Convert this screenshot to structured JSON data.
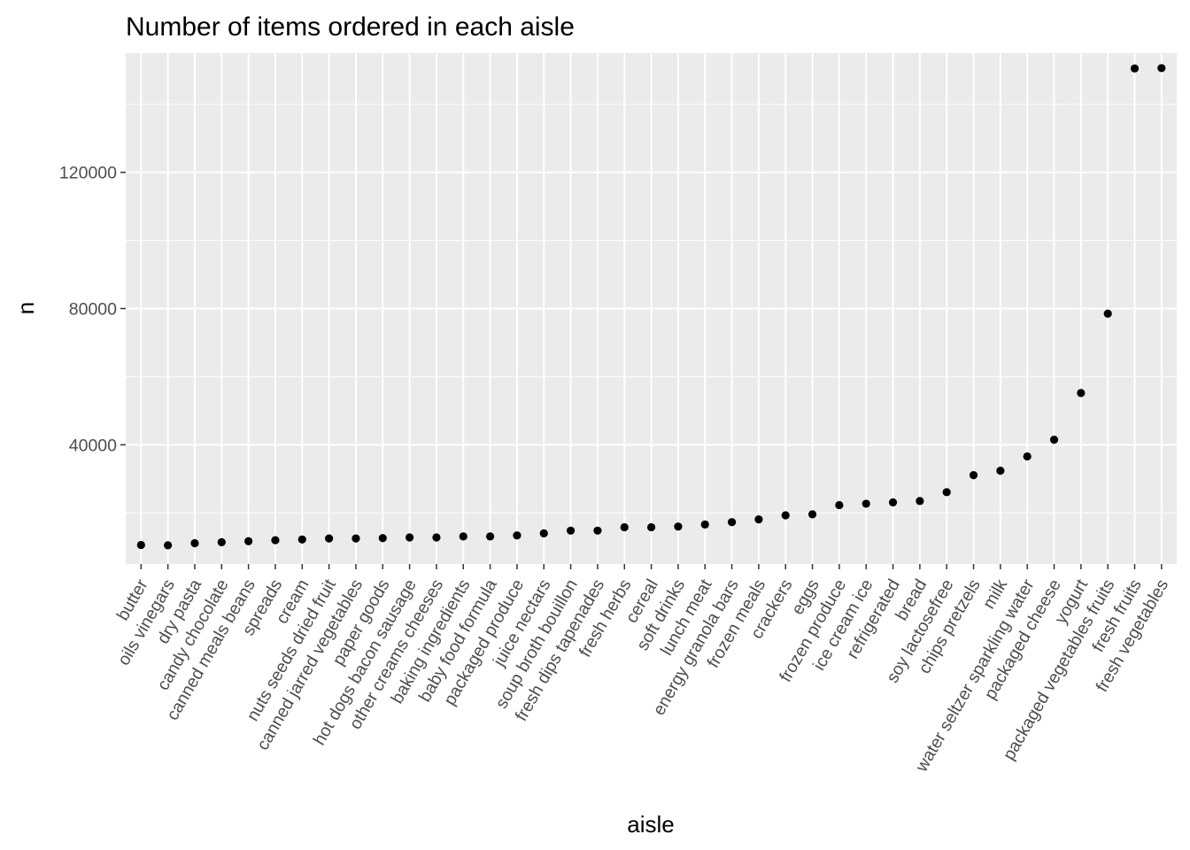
{
  "chart_data": {
    "type": "scatter",
    "title": "Number of items ordered in each aisle",
    "xlabel": "aisle",
    "ylabel": "n",
    "ylim": [
      5000,
      155000
    ],
    "yticks": [
      40000,
      80000,
      120000
    ],
    "grid": true,
    "point_color": "#000000",
    "panel_color": "#ebebeb",
    "grid_color": "#ffffff",
    "categories": [
      "butter",
      "oils vinegars",
      "dry pasta",
      "candy chocolate",
      "canned meals beans",
      "spreads",
      "cream",
      "nuts seeds dried fruit",
      "canned jarred vegetables",
      "paper goods",
      "hot dogs bacon sausage",
      "other creams cheeses",
      "baking ingredients",
      "baby food formula",
      "packaged produce",
      "juice nectars",
      "soup broth bouillon",
      "fresh dips tapenades",
      "fresh herbs",
      "cereal",
      "soft drinks",
      "lunch meat",
      "energy granola bars",
      "frozen meals",
      "crackers",
      "eggs",
      "frozen produce",
      "ice cream ice",
      "refrigerated",
      "bread",
      "soy lactosefree",
      "chips pretzels",
      "milk",
      "water seltzer sparkling water",
      "packaged cheese",
      "yogurt",
      "packaged vegetables fruits",
      "fresh fruits",
      "fresh vegetables"
    ],
    "values": [
      10600,
      10500,
      11100,
      11400,
      11700,
      12000,
      12200,
      12500,
      12500,
      12600,
      12800,
      12800,
      13100,
      13100,
      13400,
      14000,
      14800,
      14800,
      15800,
      15800,
      16000,
      16600,
      17300,
      18100,
      19300,
      19600,
      22300,
      22700,
      23100,
      23500,
      26100,
      31100,
      32400,
      36600,
      41500,
      55200,
      78500,
      150500,
      150600
    ]
  }
}
